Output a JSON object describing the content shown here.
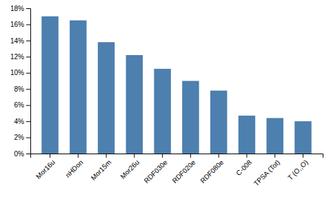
{
  "chart_data": {
    "type": "bar",
    "categories": [
      "Mor16u",
      "nHDon",
      "Mor15m",
      "Mor26u",
      "RDF030e",
      "RDF020e",
      "RDF080e",
      "C-008",
      "TPSA (Tot)",
      "T (O,,O)"
    ],
    "values": [
      0.17,
      0.165,
      0.138,
      0.122,
      0.105,
      0.09,
      0.078,
      0.047,
      0.044,
      0.04
    ],
    "color": "#4d7faf",
    "ylim": [
      0,
      0.18
    ],
    "yticks": [
      {
        "value": 0,
        "label": "0%"
      },
      {
        "value": 0.02,
        "label": "2%"
      },
      {
        "value": 0.04,
        "label": "4%"
      },
      {
        "value": 0.06,
        "label": "6%"
      },
      {
        "value": 0.08,
        "label": "8%"
      },
      {
        "value": 0.1,
        "label": "10%"
      },
      {
        "value": 0.12,
        "label": "12%"
      },
      {
        "value": 0.14,
        "label": "14%"
      },
      {
        "value": 0.16,
        "label": "16%"
      },
      {
        "value": 0.18,
        "label": "18%"
      }
    ],
    "grid": false
  }
}
